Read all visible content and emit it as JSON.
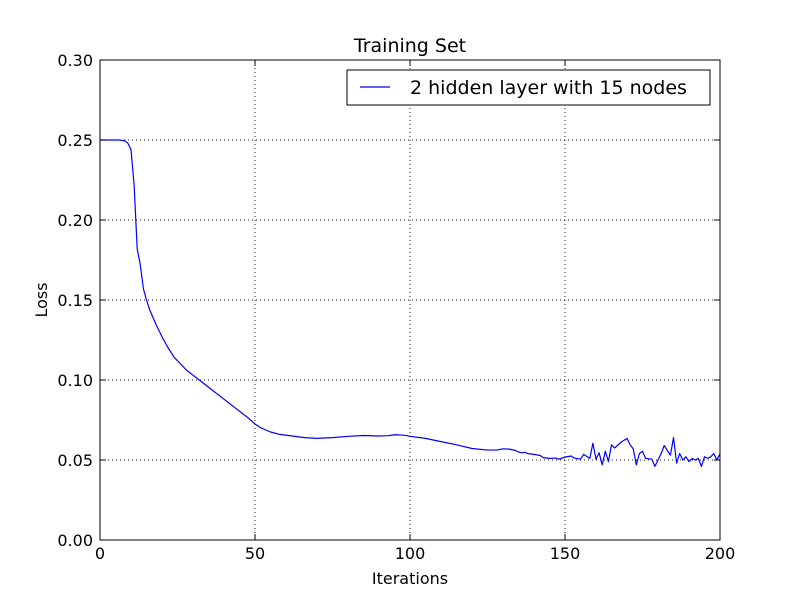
{
  "chart_data": {
    "type": "line",
    "title": "Training Set",
    "xlabel": "Iterations",
    "ylabel": "Loss",
    "xlim": [
      0,
      200
    ],
    "ylim": [
      0,
      0.3
    ],
    "x_ticks": [
      "0",
      "50",
      "100",
      "150",
      "200"
    ],
    "x_tick_values": [
      0,
      50,
      100,
      150,
      200
    ],
    "y_ticks": [
      "0.00",
      "0.05",
      "0.10",
      "0.15",
      "0.20",
      "0.25",
      "0.30"
    ],
    "y_tick_values": [
      0,
      0.05,
      0.1,
      0.15,
      0.2,
      0.25,
      0.3
    ],
    "grid": true,
    "legend_position": "upper-right",
    "series": [
      {
        "name": "2 hidden layer with 15 nodes",
        "color": "#0000ff",
        "points": [
          [
            0,
            0.25
          ],
          [
            3,
            0.25
          ],
          [
            6,
            0.25
          ],
          [
            8,
            0.2495
          ],
          [
            9,
            0.248
          ],
          [
            10,
            0.244
          ],
          [
            11,
            0.222
          ],
          [
            12,
            0.182
          ],
          [
            13,
            0.172
          ],
          [
            14,
            0.157
          ],
          [
            15,
            0.15
          ],
          [
            16,
            0.144
          ],
          [
            18,
            0.135
          ],
          [
            20,
            0.127
          ],
          [
            22,
            0.12
          ],
          [
            24,
            0.114
          ],
          [
            26,
            0.11
          ],
          [
            28,
            0.106
          ],
          [
            30,
            0.103
          ],
          [
            33,
            0.0985
          ],
          [
            36,
            0.094
          ],
          [
            40,
            0.088
          ],
          [
            44,
            0.082
          ],
          [
            48,
            0.076
          ],
          [
            50,
            0.0725
          ],
          [
            52,
            0.07
          ],
          [
            55,
            0.0675
          ],
          [
            58,
            0.066
          ],
          [
            62,
            0.065
          ],
          [
            66,
            0.064
          ],
          [
            70,
            0.0635
          ],
          [
            75,
            0.064
          ],
          [
            80,
            0.0648
          ],
          [
            85,
            0.0653
          ],
          [
            90,
            0.065
          ],
          [
            93,
            0.0652
          ],
          [
            95,
            0.0658
          ],
          [
            98,
            0.0655
          ],
          [
            100,
            0.0648
          ],
          [
            105,
            0.0635
          ],
          [
            110,
            0.0615
          ],
          [
            115,
            0.0595
          ],
          [
            120,
            0.0572
          ],
          [
            125,
            0.0562
          ],
          [
            128,
            0.0562
          ],
          [
            130,
            0.057
          ],
          [
            132,
            0.0568
          ],
          [
            134,
            0.056
          ],
          [
            135,
            0.055
          ],
          [
            136,
            0.0545
          ],
          [
            137,
            0.0548
          ],
          [
            138,
            0.054
          ],
          [
            140,
            0.0535
          ],
          [
            142,
            0.0528
          ],
          [
            143,
            0.0515
          ],
          [
            145,
            0.051
          ],
          [
            147,
            0.0512
          ],
          [
            148,
            0.0505
          ],
          [
            150,
            0.0518
          ],
          [
            152,
            0.0525
          ],
          [
            153,
            0.0512
          ],
          [
            155,
            0.0505
          ],
          [
            156,
            0.0535
          ],
          [
            158,
            0.051
          ],
          [
            159,
            0.0605
          ],
          [
            160,
            0.0505
          ],
          [
            161,
            0.0545
          ],
          [
            162,
            0.047
          ],
          [
            163,
            0.0555
          ],
          [
            164,
            0.049
          ],
          [
            165,
            0.0595
          ],
          [
            166,
            0.0575
          ],
          [
            168,
            0.061
          ],
          [
            170,
            0.0635
          ],
          [
            171,
            0.0595
          ],
          [
            172,
            0.057
          ],
          [
            173,
            0.047
          ],
          [
            174,
            0.054
          ],
          [
            175,
            0.0555
          ],
          [
            176,
            0.051
          ],
          [
            178,
            0.0505
          ],
          [
            179,
            0.046
          ],
          [
            181,
            0.054
          ],
          [
            182,
            0.059
          ],
          [
            183,
            0.056
          ],
          [
            184,
            0.053
          ],
          [
            185,
            0.064
          ],
          [
            186,
            0.048
          ],
          [
            187,
            0.054
          ],
          [
            188,
            0.05
          ],
          [
            189,
            0.052
          ],
          [
            190,
            0.049
          ],
          [
            191,
            0.051
          ],
          [
            192,
            0.05
          ],
          [
            193,
            0.051
          ],
          [
            194,
            0.046
          ],
          [
            195,
            0.052
          ],
          [
            196,
            0.051
          ],
          [
            197,
            0.052
          ],
          [
            198,
            0.054
          ],
          [
            199,
            0.05
          ],
          [
            200,
            0.054
          ]
        ]
      }
    ]
  }
}
